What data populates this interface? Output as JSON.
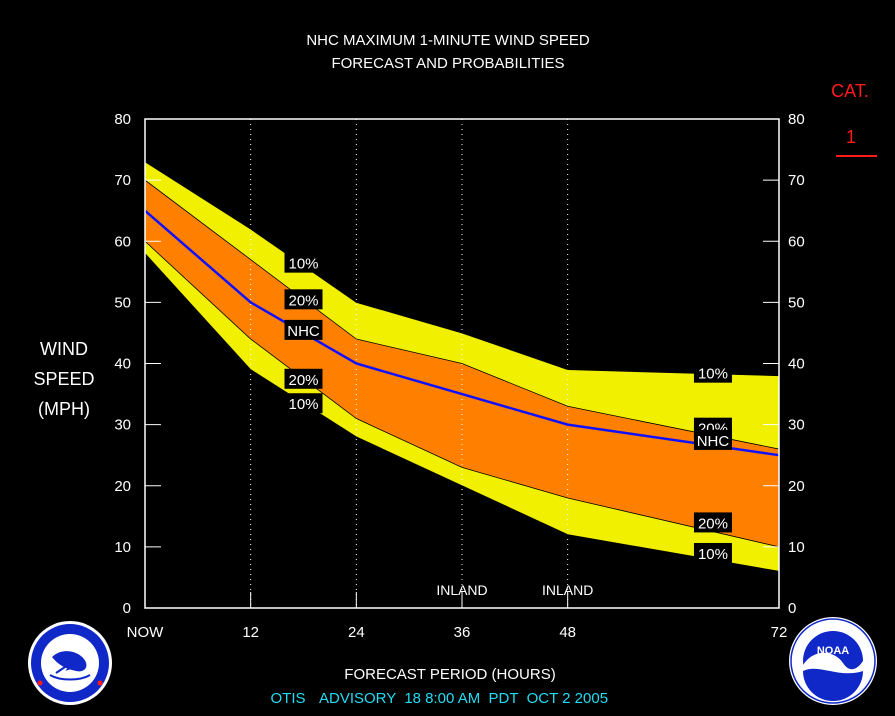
{
  "header": {
    "title_line1": "NHC MAXIMUM 1-MINUTE WIND SPEED",
    "title_line2": "FORECAST AND PROBABILITIES"
  },
  "category": {
    "label": "CAT.",
    "value": "1"
  },
  "footer": {
    "storm": "OTIS",
    "advisory": "ADVISORY  18 8:00 AM  PDT  OCT 2 2005"
  },
  "colors": {
    "outer_band": "#f0f000",
    "inner_band": "#ff8000",
    "nhc_line": "#1010ff",
    "category_accent": "#ff1a1a",
    "footer_text": "#22dcf2"
  },
  "logos": {
    "left": {
      "name": "national-weather-service-logo",
      "text": "NATIONAL WEATHER SERVICE"
    },
    "right": {
      "name": "noaa-logo",
      "text": "NOAA",
      "ring_text": "NATIONAL OCEANIC AND ATMOSPHERIC ADMINISTRATION · U.S. DEPARTMENT OF COMMERCE"
    }
  },
  "chart_data": {
    "type": "area",
    "title": "NHC MAXIMUM 1-MINUTE WIND SPEED",
    "subtitle": "FORECAST AND PROBABILITIES",
    "xlabel": "FORECAST PERIOD (HOURS)",
    "ylabel": [
      "WIND",
      "SPEED",
      "(MPH)"
    ],
    "xlim": [
      0,
      72
    ],
    "ylim": [
      0,
      80
    ],
    "yticks": [
      0,
      10,
      20,
      30,
      40,
      50,
      60,
      70,
      80
    ],
    "xticks": [
      {
        "value": 0,
        "label": "NOW"
      },
      {
        "value": 12,
        "label": "12"
      },
      {
        "value": 24,
        "label": "24"
      },
      {
        "value": 36,
        "label": "36"
      },
      {
        "value": 48,
        "label": "48"
      },
      {
        "value": 72,
        "label": "72"
      }
    ],
    "vertical_gridlines": [
      12,
      24,
      36,
      48
    ],
    "x": [
      0,
      12,
      24,
      36,
      48,
      72
    ],
    "series": [
      {
        "name": "10%",
        "role": "upper_outer",
        "values": [
          73,
          62,
          50,
          45,
          39,
          38
        ]
      },
      {
        "name": "20%",
        "role": "upper_inner",
        "values": [
          70,
          57,
          44,
          40,
          33,
          26
        ]
      },
      {
        "name": "NHC",
        "role": "forecast",
        "values": [
          65,
          50,
          40,
          35,
          30,
          25
        ]
      },
      {
        "name": "20%",
        "role": "lower_inner",
        "values": [
          60,
          44,
          31,
          23,
          18,
          10
        ]
      },
      {
        "name": "10%",
        "role": "lower_outer",
        "values": [
          58,
          39,
          28,
          20,
          12,
          6
        ]
      }
    ],
    "annotations": [
      {
        "text": "INLAND",
        "x": 36
      },
      {
        "text": "INLAND",
        "x": 48
      }
    ],
    "series_labels": [
      {
        "text": "10%",
        "x": 18,
        "y": 56.5
      },
      {
        "text": "20%",
        "x": 18,
        "y": 50.5
      },
      {
        "text": "NHC",
        "x": 18,
        "y": 45.5
      },
      {
        "text": "20%",
        "x": 18,
        "y": 37.5
      },
      {
        "text": "10%",
        "x": 18,
        "y": 33.5
      },
      {
        "text": "10%",
        "x": 64.5,
        "y": 38.5
      },
      {
        "text": "20%",
        "x": 64.5,
        "y": 29.5
      },
      {
        "text": "NHC",
        "x": 64.5,
        "y": 27.5
      },
      {
        "text": "20%",
        "x": 64.5,
        "y": 14
      },
      {
        "text": "10%",
        "x": 64.5,
        "y": 9
      }
    ]
  }
}
